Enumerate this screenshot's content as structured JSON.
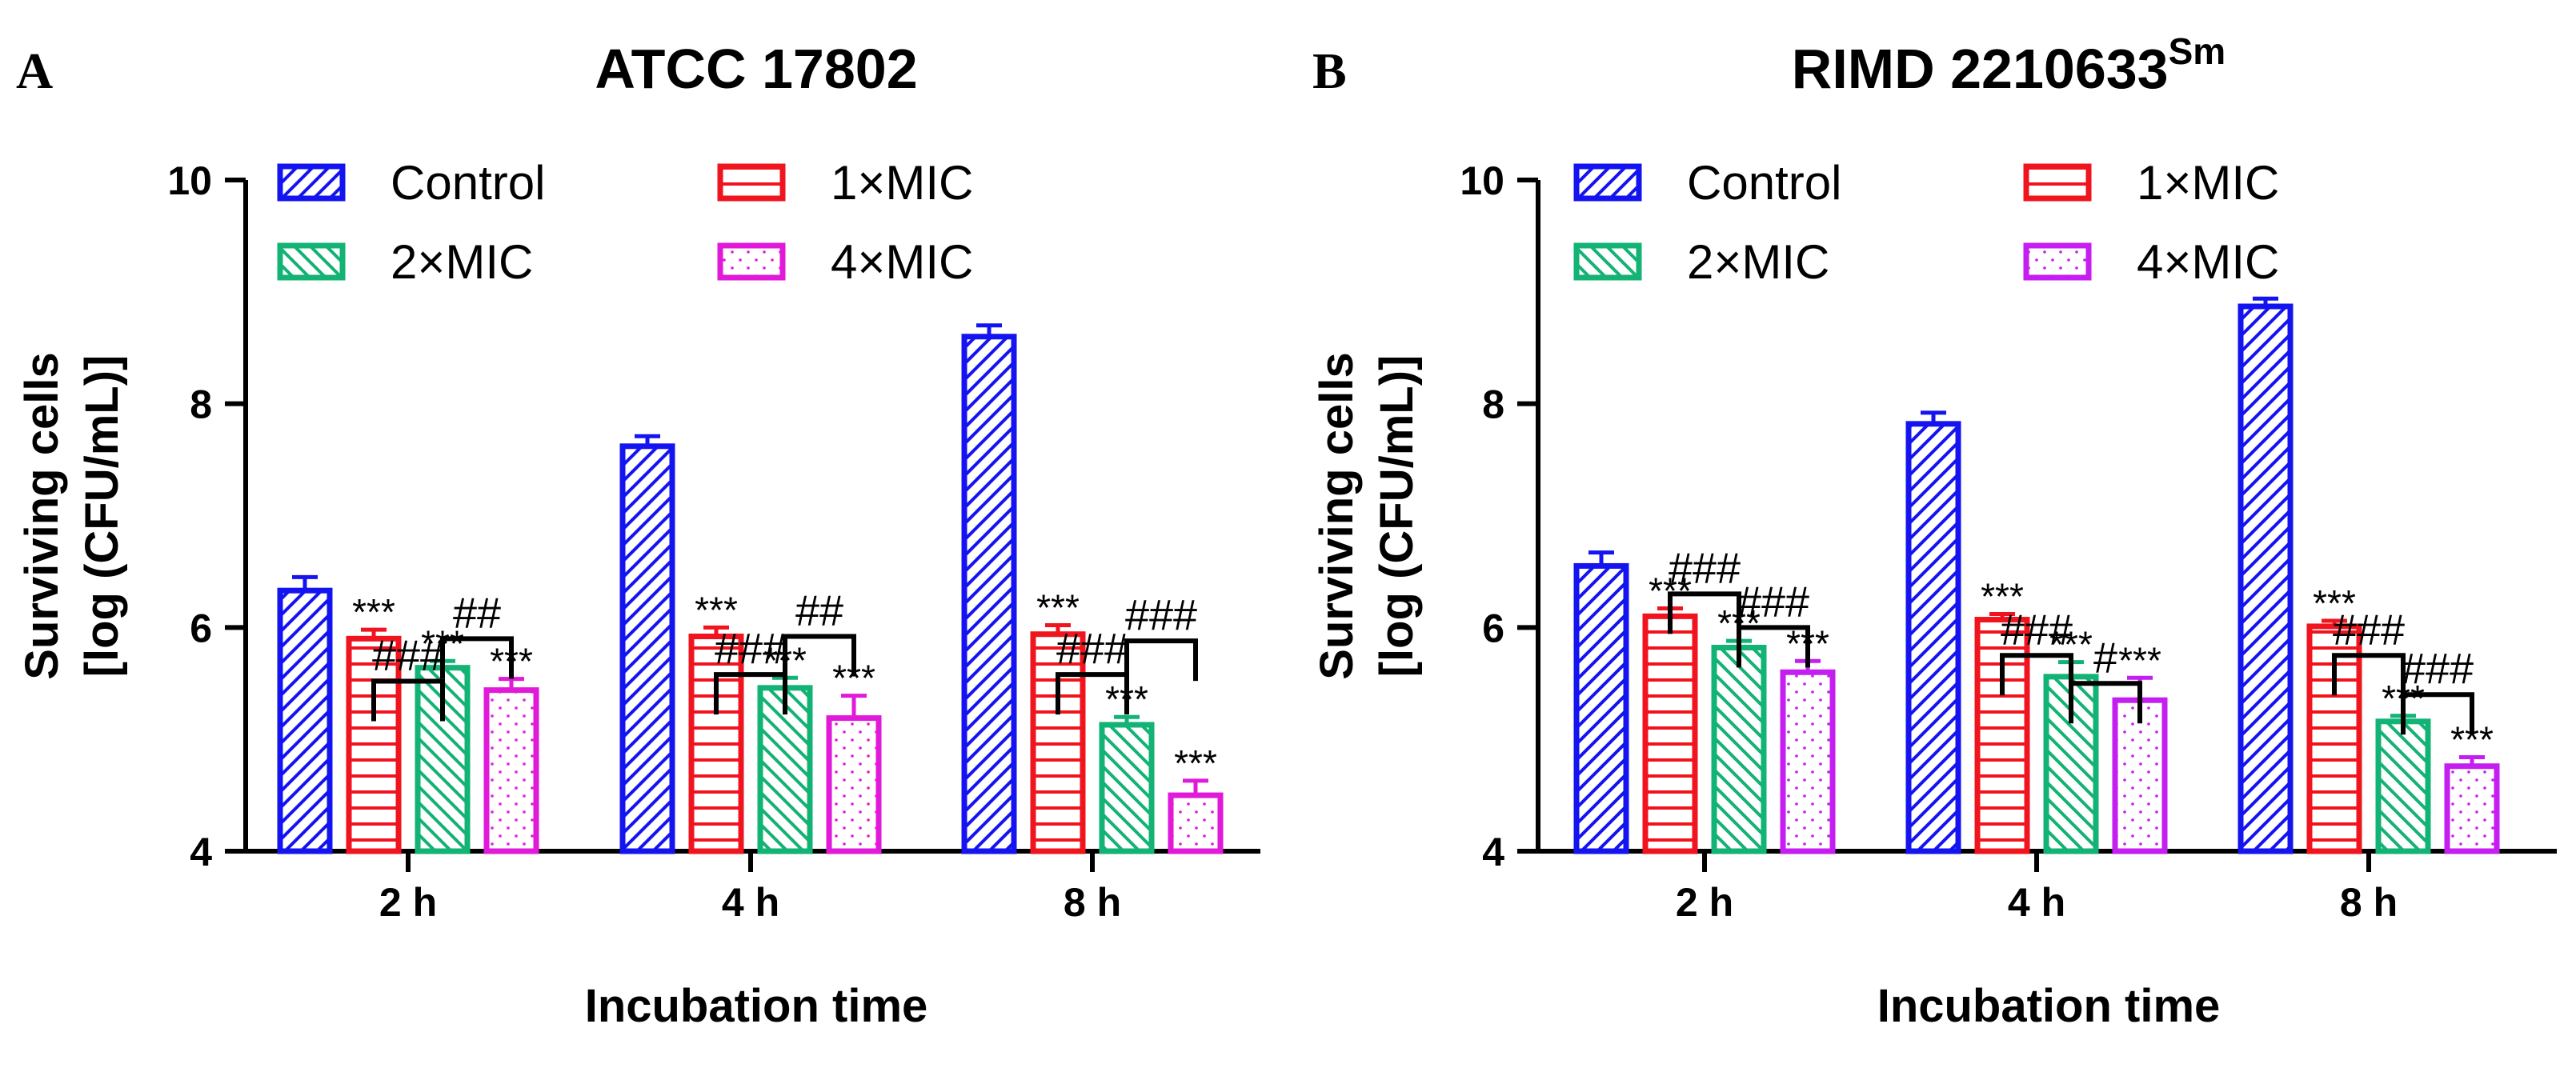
{
  "chart_data": [
    {
      "type": "bar",
      "panel_letter": "A",
      "title": "ATCC 17802",
      "title_superscript": "",
      "xlabel": "Incubation time",
      "ylabel_line1": "Surviving cells",
      "ylabel_line2": "[log (CFU/mL)]",
      "ylim": [
        4,
        10
      ],
      "yticks": [
        "4",
        "6",
        "8",
        "10"
      ],
      "categories": [
        "2 h",
        "4 h",
        "8 h"
      ],
      "series": [
        {
          "name": "Control",
          "color": "#1414f0",
          "pattern": "diag-up",
          "values": [
            6.33,
            7.62,
            8.6
          ],
          "errors": [
            0.12,
            0.09,
            0.1
          ],
          "sig": [
            "",
            "",
            ""
          ]
        },
        {
          "name": "1×MIC",
          "color": "#f0141e",
          "pattern": "horiz",
          "values": [
            5.9,
            5.92,
            5.94
          ],
          "errors": [
            0.08,
            0.08,
            0.08
          ],
          "sig": [
            "***",
            "***",
            "***"
          ]
        },
        {
          "name": "2×MIC",
          "color": "#12b374",
          "pattern": "diag-down",
          "values": [
            5.64,
            5.46,
            5.13
          ],
          "errors": [
            0.06,
            0.09,
            0.07
          ],
          "sig": [
            "***",
            "***",
            "***"
          ]
        },
        {
          "name": "4×MIC",
          "color": "#e01ad8",
          "pattern": "dots",
          "values": [
            5.44,
            5.19,
            4.5
          ],
          "errors": [
            0.1,
            0.2,
            0.13
          ],
          "sig": [
            "***",
            "***",
            "***"
          ]
        }
      ],
      "brackets": [
        {
          "category": 0,
          "from": 1,
          "to": 2,
          "label": "###",
          "level": 5.52
        },
        {
          "category": 0,
          "from": 2,
          "to": 3,
          "label": "##",
          "level": 5.9
        },
        {
          "category": 1,
          "from": 1,
          "to": 2,
          "label": "###",
          "level": 5.58
        },
        {
          "category": 1,
          "from": 2,
          "to": 3,
          "label": "##",
          "level": 5.92
        },
        {
          "category": 2,
          "from": 1,
          "to": 2,
          "label": "###",
          "level": 5.58
        },
        {
          "category": 2,
          "from": 2,
          "to": 3,
          "label": "###",
          "level": 5.88
        }
      ]
    },
    {
      "type": "bar",
      "panel_letter": "B",
      "title": "RIMD 2210633",
      "title_superscript": "Sm",
      "xlabel": "Incubation time",
      "ylabel_line1": "Surviving cells",
      "ylabel_line2": "[log (CFU/mL)]",
      "ylim": [
        4,
        10
      ],
      "yticks": [
        "4",
        "6",
        "8",
        "10"
      ],
      "categories": [
        "2 h",
        "4 h",
        "8 h"
      ],
      "series": [
        {
          "name": "Control",
          "color": "#1414f0",
          "pattern": "diag-up",
          "values": [
            6.55,
            7.82,
            8.87
          ],
          "errors": [
            0.12,
            0.1,
            0.07
          ],
          "sig": [
            "",
            "",
            ""
          ]
        },
        {
          "name": "1×MIC",
          "color": "#f0141e",
          "pattern": "horiz",
          "values": [
            6.1,
            6.07,
            6.01
          ],
          "errors": [
            0.07,
            0.05,
            0.05
          ],
          "sig": [
            "***",
            "***",
            "***"
          ]
        },
        {
          "name": "2×MIC",
          "color": "#12b374",
          "pattern": "diag-down",
          "values": [
            5.82,
            5.56,
            5.16
          ],
          "errors": [
            0.06,
            0.13,
            0.05
          ],
          "sig": [
            "***",
            "***",
            "***"
          ]
        },
        {
          "name": "4×MIC",
          "color": "#c41ef0",
          "pattern": "dots",
          "values": [
            5.6,
            5.35,
            4.76
          ],
          "errors": [
            0.1,
            0.2,
            0.08
          ],
          "sig": [
            "***",
            "***",
            "***"
          ]
        }
      ],
      "brackets": [
        {
          "category": 0,
          "from": 1,
          "to": 2,
          "label": "###",
          "level": 6.3
        },
        {
          "category": 0,
          "from": 2,
          "to": 3,
          "label": "###",
          "level": 6.0
        },
        {
          "category": 1,
          "from": 1,
          "to": 2,
          "label": "###",
          "level": 5.75
        },
        {
          "category": 1,
          "from": 2,
          "to": 3,
          "label": "#",
          "level": 5.5
        },
        {
          "category": 2,
          "from": 1,
          "to": 2,
          "label": "###",
          "level": 5.75
        },
        {
          "category": 2,
          "from": 2,
          "to": 3,
          "label": "###",
          "level": 5.4
        }
      ]
    }
  ]
}
